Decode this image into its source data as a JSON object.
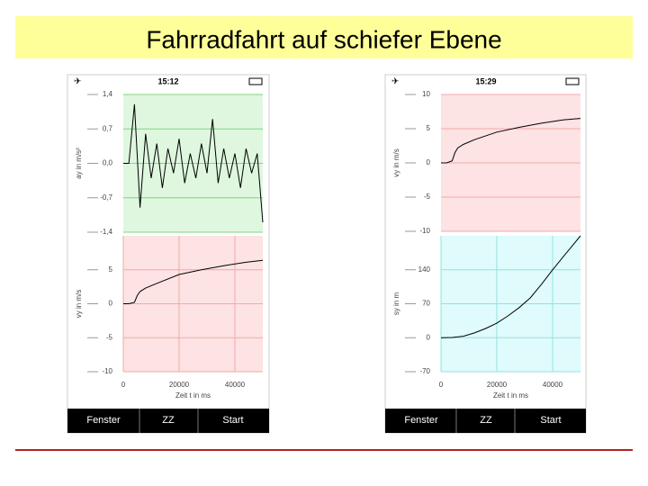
{
  "title": "Fahrradfahrt auf schiefer Ebene",
  "phones": [
    {
      "time": "15:12",
      "buttons": [
        "Fenster",
        "ZZ",
        "Start"
      ]
    },
    {
      "time": "15:29",
      "buttons": [
        "Fenster",
        "ZZ",
        "Start"
      ]
    }
  ],
  "chart_data": [
    {
      "type": "line",
      "ylabel": "ay in m/s²",
      "background": "#dff7df",
      "grid_color": "#7fd67f",
      "color": "#000000",
      "xlim": [
        0,
        50000
      ],
      "ylim": [
        -1.4,
        1.4
      ],
      "yticks": [
        {
          "value": 1.4,
          "label": "1,4"
        },
        {
          "value": 0.7,
          "label": "0,7"
        },
        {
          "value": 0,
          "label": "0,0"
        },
        {
          "value": -0.7,
          "label": "-0,7"
        },
        {
          "value": -1.4,
          "label": "-1,4"
        }
      ],
      "series": [
        {
          "x": [
            0,
            2000,
            4000,
            6000,
            8000,
            10000,
            12000,
            14000,
            16000,
            18000,
            20000,
            22000,
            24000,
            26000,
            28000,
            30000,
            32000,
            34000,
            36000,
            38000,
            40000,
            42000,
            44000,
            46000,
            48000,
            50000
          ],
          "values": [
            0,
            0,
            1.2,
            -0.9,
            0.6,
            -0.3,
            0.4,
            -0.5,
            0.3,
            -0.2,
            0.5,
            -0.4,
            0.2,
            -0.3,
            0.4,
            -0.2,
            0.9,
            -0.4,
            0.3,
            -0.3,
            0.2,
            -0.5,
            0.3,
            -0.2,
            0.2,
            -1.2
          ]
        }
      ]
    },
    {
      "type": "line",
      "ylabel": "vy in m/s",
      "xlabel": "Zeit t in ms",
      "background": "#fde3e3",
      "grid_color": "#f2a9a9",
      "color": "#000000",
      "xlim": [
        0,
        50000
      ],
      "ylim": [
        -10,
        10
      ],
      "yticks": [
        5,
        0,
        -5,
        -10
      ],
      "xticks": [
        0,
        20000,
        40000
      ],
      "series": [
        {
          "x": [
            0,
            2000,
            4000,
            5000,
            6000,
            8000,
            12000,
            20000,
            28000,
            36000,
            44000,
            50000
          ],
          "values": [
            0,
            0,
            0.2,
            1.2,
            1.8,
            2.3,
            3,
            4.3,
            5,
            5.6,
            6.1,
            6.4
          ]
        }
      ]
    },
    {
      "type": "line",
      "ylabel": "vy in m/s",
      "background": "#fde3e3",
      "grid_color": "#f2a9a9",
      "color": "#000000",
      "xlim": [
        0,
        50000
      ],
      "ylim": [
        -10,
        10
      ],
      "yticks": [
        10,
        5,
        0,
        -5,
        -10
      ],
      "series": [
        {
          "x": [
            0,
            2000,
            4000,
            5000,
            6000,
            8000,
            12000,
            20000,
            28000,
            36000,
            44000,
            50000
          ],
          "values": [
            0,
            0,
            0.3,
            1.5,
            2.2,
            2.7,
            3.4,
            4.5,
            5.2,
            5.8,
            6.3,
            6.5
          ]
        }
      ]
    },
    {
      "type": "line",
      "ylabel": "sy in m",
      "xlabel": "Zeit t in ms",
      "background": "#e0fbfb",
      "grid_color": "#8fe3e3",
      "color": "#000000",
      "xlim": [
        0,
        50000
      ],
      "ylim": [
        -70,
        210
      ],
      "yticks": [
        140,
        70,
        0,
        -70
      ],
      "xticks": [
        0,
        20000,
        40000
      ],
      "series": [
        {
          "x": [
            0,
            4000,
            8000,
            12000,
            16000,
            20000,
            24000,
            28000,
            32000,
            36000,
            40000,
            44000,
            48000,
            50000
          ],
          "values": [
            0,
            0.5,
            3,
            10,
            19,
            30,
            45,
            62,
            82,
            110,
            140,
            168,
            196,
            210
          ]
        }
      ]
    }
  ]
}
